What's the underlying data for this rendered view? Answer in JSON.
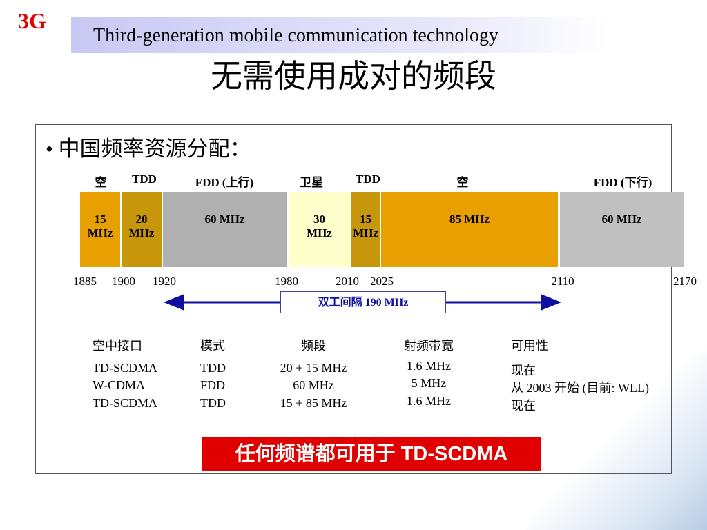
{
  "header": {
    "logo": "3G",
    "title": "Third-generation mobile communication technology",
    "heading": "无需使用成对的频段"
  },
  "bullet": "中国频率资源分配：",
  "band_labels": [
    "空",
    "TDD",
    "FDD (上行)",
    "卫星",
    "TDD",
    "空",
    "FDD (下行)"
  ],
  "bands": [
    "15 MHz",
    "20 MHz",
    "60 MHz",
    "30 MHz",
    "15 MHz",
    "85 MHz",
    "60 MHz"
  ],
  "frequencies": [
    "1885",
    "1900",
    "1920",
    "1980",
    "2010",
    "2025",
    "2110",
    "2170"
  ],
  "duplex": "双工间隔 190 MHz",
  "table": {
    "header": [
      "空中接口",
      "模式",
      "频段",
      "射频带宽",
      "可用性"
    ],
    "rows": [
      [
        "TD-SCDMA",
        "TDD",
        "20 + 15 MHz",
        "1.6 MHz",
        "现在"
      ],
      [
        "W-CDMA",
        "FDD",
        "60 MHz",
        "5 MHz",
        "从 2003 开始  (目前: WLL)"
      ],
      [
        "TD-SCDMA",
        "TDD",
        "15 + 85 MHz",
        "1.6 MHz",
        "现在"
      ]
    ]
  },
  "banner": "任何频谱都可用于 TD-SCDMA"
}
